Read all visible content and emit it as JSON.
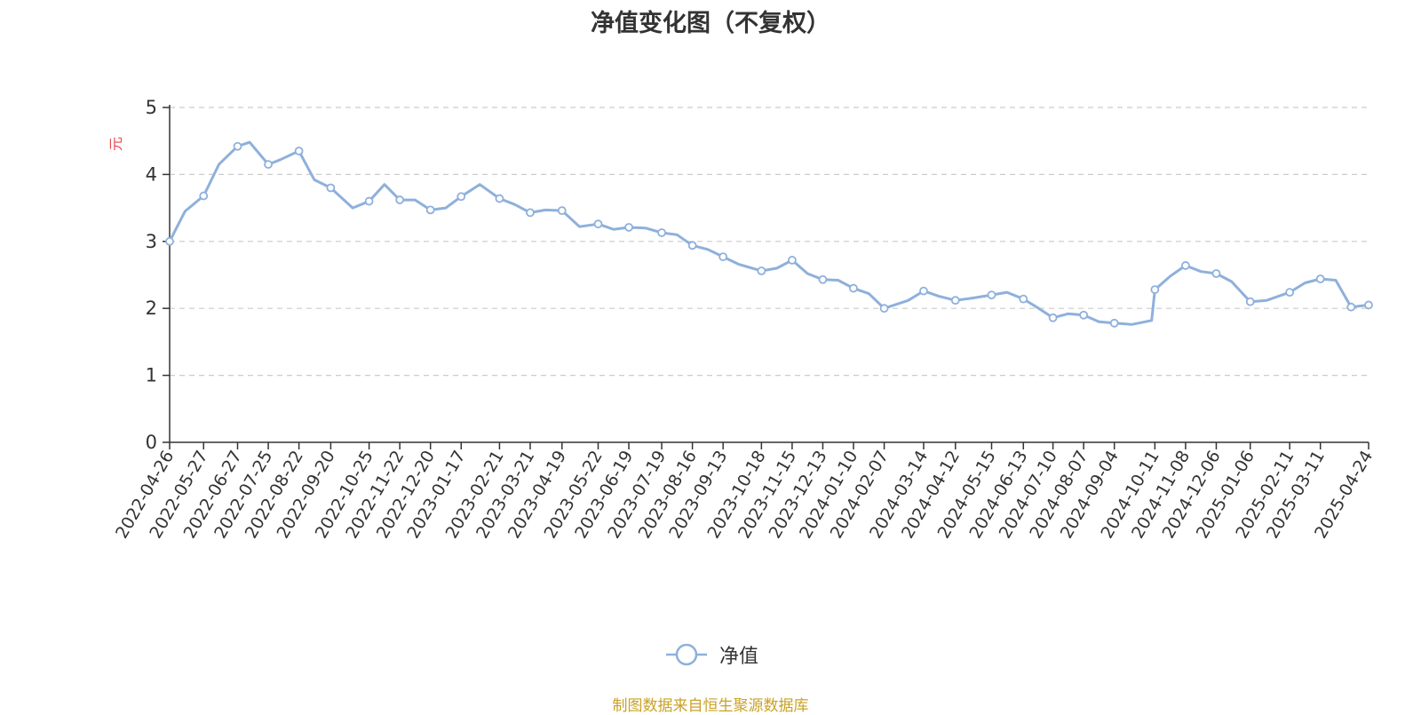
{
  "chart_data": {
    "type": "line",
    "title": "净值变化图（不复权）",
    "ylabel": "元",
    "ylim": [
      0,
      5
    ],
    "yticks": [
      0,
      1,
      2,
      3,
      4,
      5
    ],
    "grid": true,
    "legend_position": "bottom-center",
    "x_tick_labels": [
      "2022-04-26",
      "2022-05-27",
      "2022-06-27",
      "2022-07-25",
      "2022-08-22",
      "2022-09-20",
      "2022-10-25",
      "2022-11-22",
      "2022-12-20",
      "2023-01-17",
      "2023-02-21",
      "2023-03-21",
      "2023-04-19",
      "2023-05-22",
      "2023-06-19",
      "2023-07-19",
      "2023-08-16",
      "2023-09-13",
      "2023-10-18",
      "2023-11-15",
      "2023-12-13",
      "2024-01-10",
      "2024-02-07",
      "2024-03-14",
      "2024-04-12",
      "2024-05-15",
      "2024-06-13",
      "2024-07-10",
      "2024-08-07",
      "2024-09-04",
      "2024-10-11",
      "2024-11-08",
      "2024-12-06",
      "2025-01-06",
      "2025-02-11",
      "2025-03-11",
      "2025-04-24"
    ],
    "series": [
      {
        "name": "净值",
        "color": "#8eb0dc",
        "x": [
          "2022-04-26",
          "2022-05-10",
          "2022-05-27",
          "2022-06-10",
          "2022-06-27",
          "2022-07-08",
          "2022-07-25",
          "2022-08-05",
          "2022-08-22",
          "2022-09-05",
          "2022-09-20",
          "2022-10-10",
          "2022-10-25",
          "2022-11-08",
          "2022-11-22",
          "2022-12-06",
          "2022-12-20",
          "2023-01-03",
          "2023-01-17",
          "2023-02-03",
          "2023-02-21",
          "2023-03-07",
          "2023-03-21",
          "2023-04-04",
          "2023-04-19",
          "2023-05-05",
          "2023-05-22",
          "2023-06-05",
          "2023-06-19",
          "2023-07-04",
          "2023-07-19",
          "2023-08-02",
          "2023-08-16",
          "2023-08-30",
          "2023-09-13",
          "2023-09-27",
          "2023-10-18",
          "2023-11-01",
          "2023-11-15",
          "2023-11-29",
          "2023-12-13",
          "2023-12-27",
          "2024-01-10",
          "2024-01-24",
          "2024-02-07",
          "2024-02-29",
          "2024-03-14",
          "2024-03-28",
          "2024-04-12",
          "2024-04-26",
          "2024-05-15",
          "2024-05-29",
          "2024-06-13",
          "2024-06-27",
          "2024-07-10",
          "2024-07-24",
          "2024-08-07",
          "2024-08-21",
          "2024-09-04",
          "2024-09-20",
          "2024-10-08",
          "2024-10-11",
          "2024-10-25",
          "2024-11-08",
          "2024-11-22",
          "2024-12-06",
          "2024-12-20",
          "2025-01-06",
          "2025-01-21",
          "2025-02-11",
          "2025-02-25",
          "2025-03-11",
          "2025-03-25",
          "2025-04-08",
          "2025-04-24"
        ],
        "y": [
          3.0,
          3.45,
          3.68,
          4.15,
          4.42,
          4.48,
          4.15,
          4.22,
          4.35,
          3.92,
          3.8,
          3.5,
          3.6,
          3.85,
          3.62,
          3.62,
          3.47,
          3.5,
          3.67,
          3.85,
          3.64,
          3.55,
          3.43,
          3.47,
          3.46,
          3.22,
          3.26,
          3.18,
          3.21,
          3.2,
          3.13,
          3.1,
          2.94,
          2.88,
          2.77,
          2.66,
          2.56,
          2.6,
          2.72,
          2.52,
          2.43,
          2.42,
          2.3,
          2.22,
          2.0,
          2.12,
          2.26,
          2.18,
          2.12,
          2.15,
          2.2,
          2.24,
          2.14,
          2.0,
          1.86,
          1.92,
          1.9,
          1.8,
          1.78,
          1.76,
          1.82,
          2.28,
          2.48,
          2.64,
          2.55,
          2.52,
          2.4,
          2.1,
          2.12,
          2.24,
          2.38,
          2.44,
          2.42,
          2.02,
          2.05
        ],
        "marked_points": [
          "2022-04-26",
          "2022-05-27",
          "2022-06-27",
          "2022-07-25",
          "2022-08-22",
          "2022-09-20",
          "2022-10-25",
          "2022-11-22",
          "2022-12-20",
          "2023-01-17",
          "2023-02-21",
          "2023-03-21",
          "2023-04-19",
          "2023-05-22",
          "2023-06-19",
          "2023-07-19",
          "2023-08-16",
          "2023-09-13",
          "2023-10-18",
          "2023-11-15",
          "2023-12-13",
          "2024-01-10",
          "2024-02-07",
          "2024-03-14",
          "2024-04-12",
          "2024-05-15",
          "2024-06-13",
          "2024-07-10",
          "2024-08-07",
          "2024-09-04",
          "2024-10-11",
          "2024-11-08",
          "2024-12-06",
          "2025-01-06",
          "2025-02-11",
          "2025-03-11",
          "2025-04-08",
          "2025-04-24"
        ]
      }
    ]
  },
  "legend": {
    "label": "净值"
  },
  "source_note": "制图数据来自恒生聚源数据库",
  "colors": {
    "axis": "#333333",
    "grid": "#cccccc",
    "ylabel": "#e8474b",
    "source": "#c9a227"
  }
}
